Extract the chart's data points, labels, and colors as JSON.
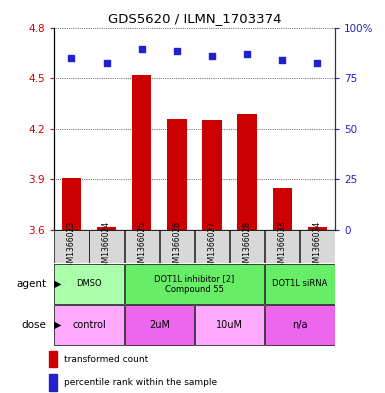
{
  "title": "GDS5620 / ILMN_1703374",
  "samples": [
    "GSM1366023",
    "GSM1366024",
    "GSM1366025",
    "GSM1366026",
    "GSM1366027",
    "GSM1366028",
    "GSM1366033",
    "GSM1366034"
  ],
  "bar_values": [
    3.91,
    3.62,
    4.52,
    4.26,
    4.25,
    4.29,
    3.85,
    3.62
  ],
  "dot_values": [
    4.62,
    4.59,
    4.67,
    4.66,
    4.63,
    4.64,
    4.61,
    4.59
  ],
  "ylim": [
    3.6,
    4.8
  ],
  "yticks": [
    3.6,
    3.9,
    4.2,
    4.5,
    4.8
  ],
  "y2tick_labels": [
    "0",
    "25",
    "50",
    "75",
    "100%"
  ],
  "bar_color": "#cc0000",
  "dot_color": "#2222cc",
  "bar_width": 0.55,
  "agent_groups": [
    {
      "label": "DMSO",
      "cols": [
        0,
        1
      ],
      "color": "#aaffaa"
    },
    {
      "label": "DOT1L inhibitor [2]\nCompound 55",
      "cols": [
        2,
        3,
        4,
        5
      ],
      "color": "#66ee66"
    },
    {
      "label": "DOT1L siRNA",
      "cols": [
        6,
        7
      ],
      "color": "#66ee66"
    }
  ],
  "dose_groups": [
    {
      "label": "control",
      "cols": [
        0,
        1
      ],
      "color": "#ffaaff"
    },
    {
      "label": "2uM",
      "cols": [
        2,
        3
      ],
      "color": "#ee66ee"
    },
    {
      "label": "10uM",
      "cols": [
        4,
        5
      ],
      "color": "#ffaaff"
    },
    {
      "label": "n/a",
      "cols": [
        6,
        7
      ],
      "color": "#ee66ee"
    }
  ],
  "sample_box_color": "#d8d8d8",
  "legend_red_label": "transformed count",
  "legend_blue_label": "percentile rank within the sample"
}
